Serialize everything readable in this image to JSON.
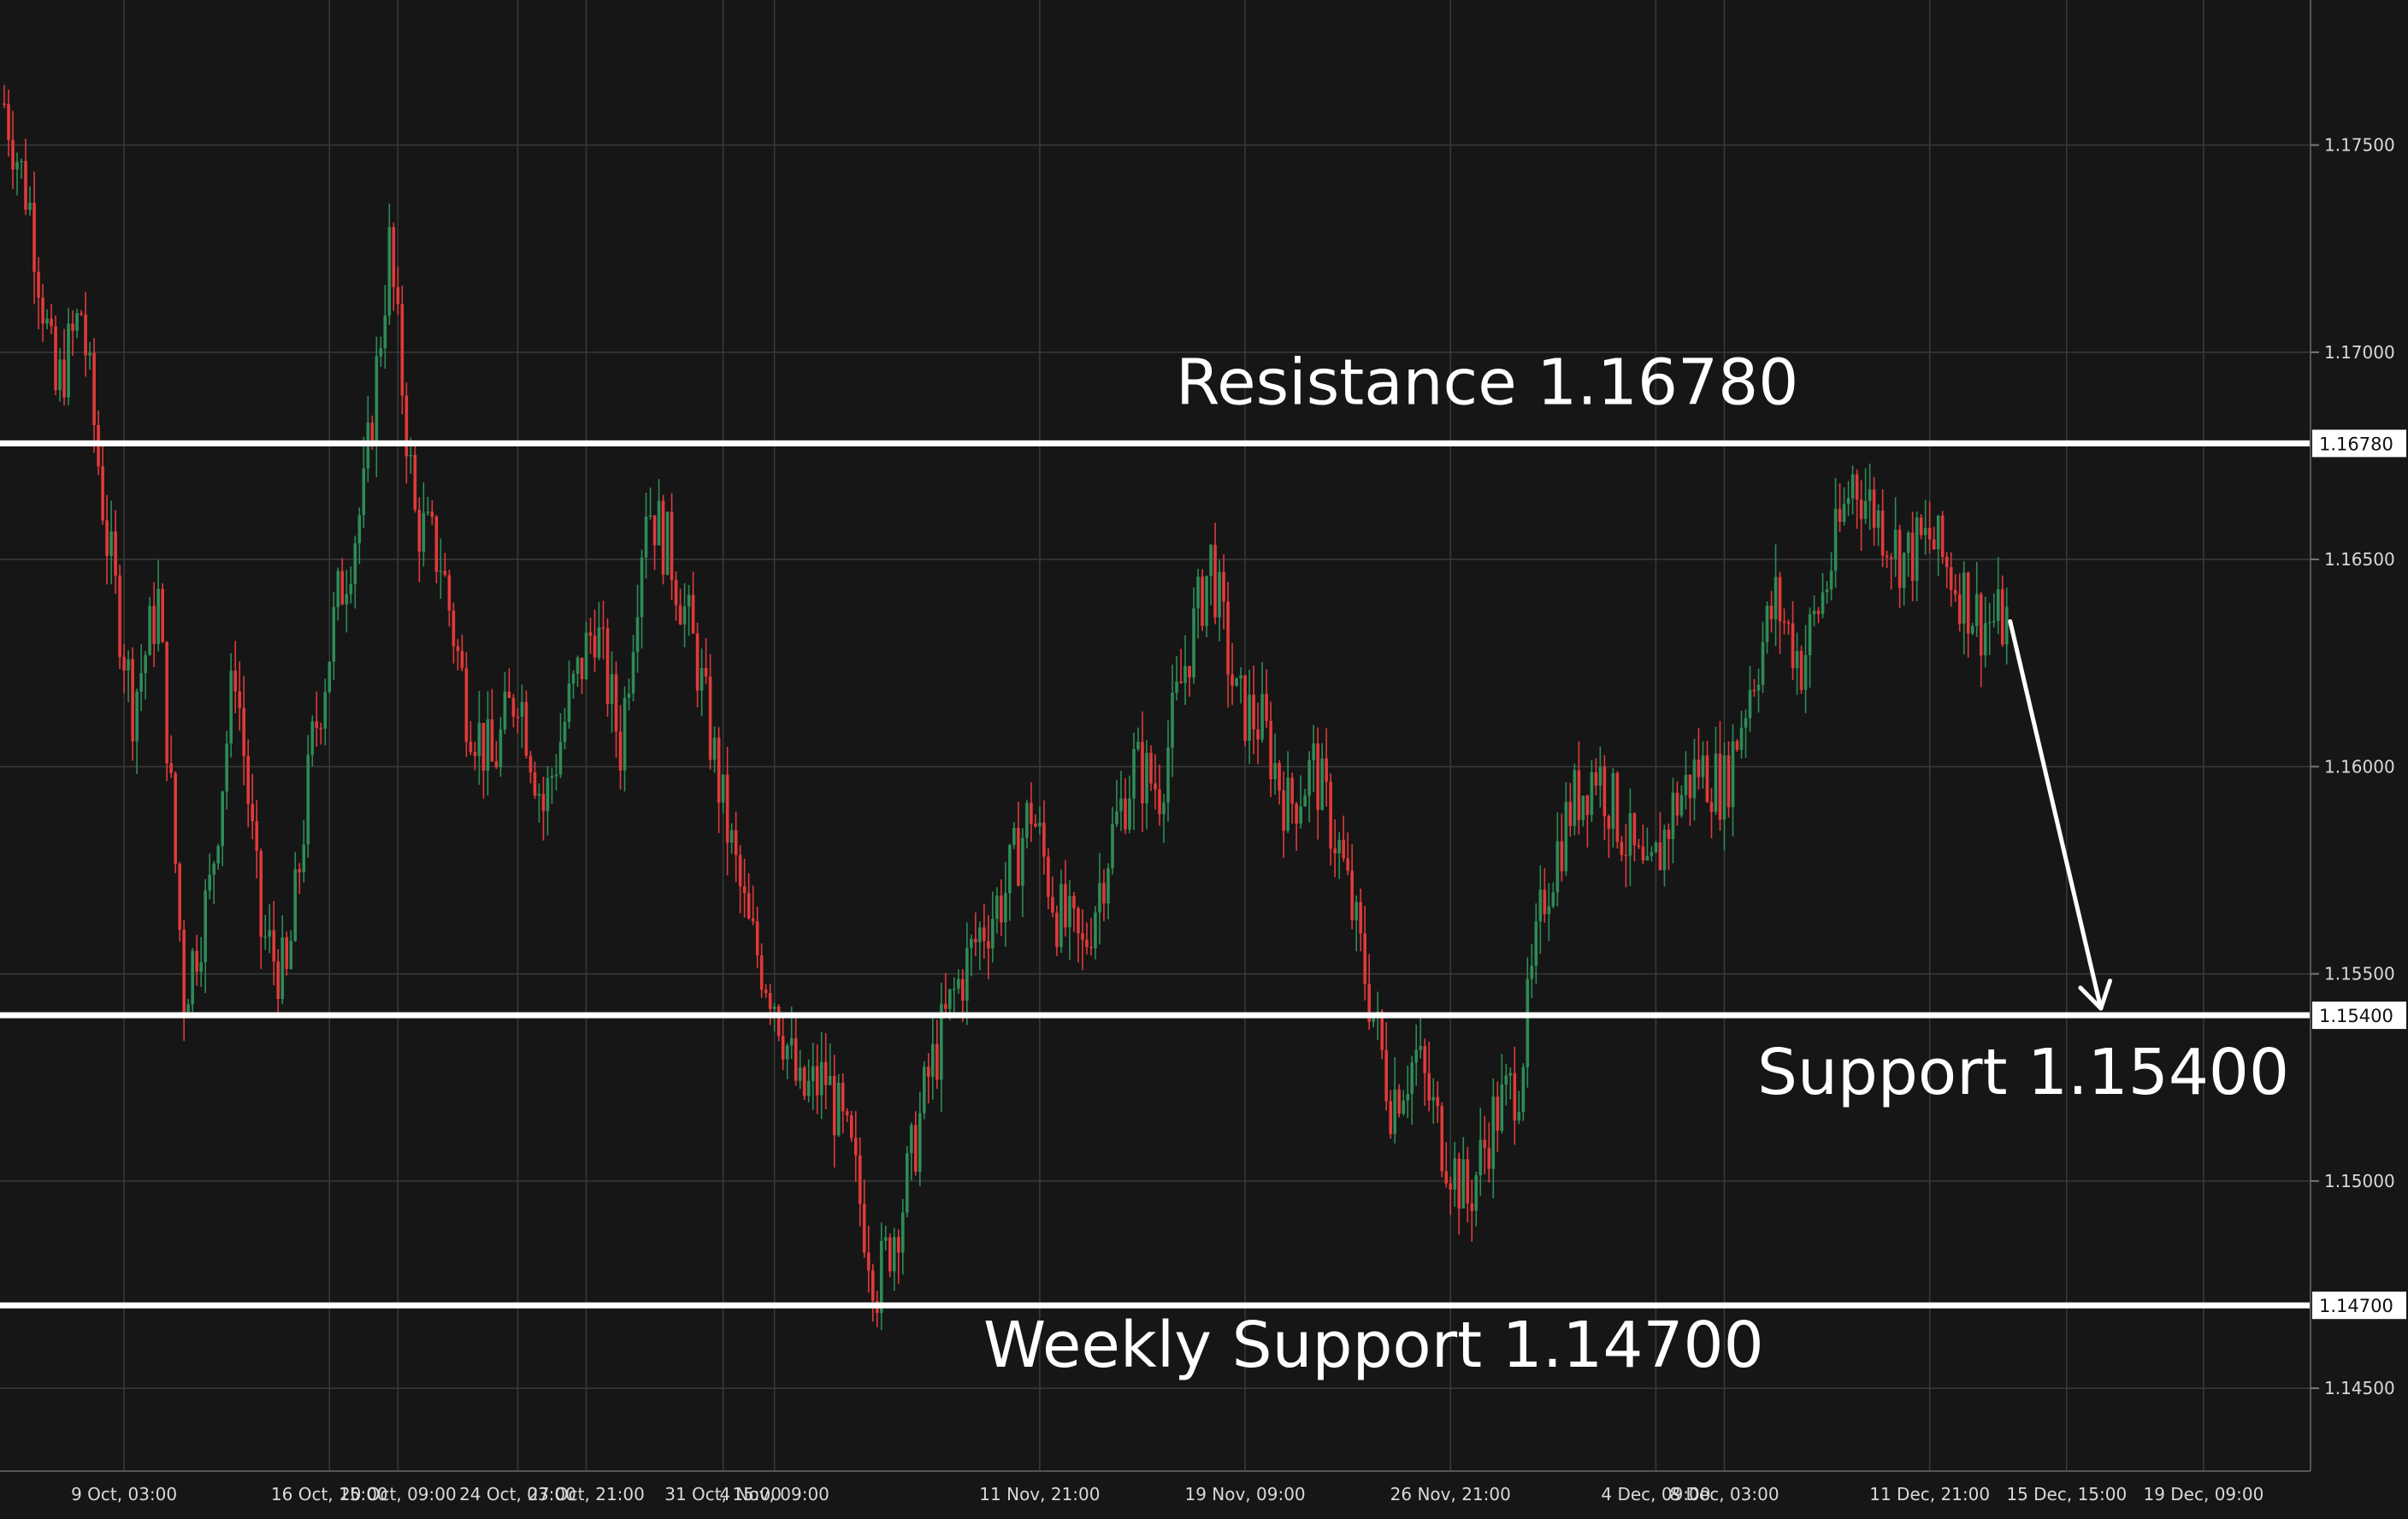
{
  "chart_data": {
    "type": "candlestick",
    "title": "",
    "xlabel": "",
    "ylabel": "",
    "ylim": [
      1.143,
      1.1785
    ],
    "grid": true,
    "colors": {
      "background": "#161616",
      "grid": "#3a3a3a",
      "bull": "#2e8b57",
      "bear": "#e03a3a",
      "level": "#ffffff",
      "text": "#d9d9d9"
    },
    "y_ticks": [
      "1.14500",
      "1.15000",
      "1.15500",
      "1.16000",
      "1.16500",
      "1.17000",
      "1.17500"
    ],
    "x_ticks": [
      "9 Oct, 03:00",
      "16 Oct, 15:00",
      "20 Oct, 09:00",
      "24 Oct, 03:00",
      "27 Oct, 21:00",
      "31 Oct, 15:00",
      "4 Nov, 09:00",
      "11 Nov, 21:00",
      "19 Nov, 09:00",
      "26 Nov, 21:00",
      "4 Dec, 09:00",
      "8 Dec, 03:00",
      "11 Dec, 21:00",
      "15 Dec, 15:00",
      "19 Dec, 09:00"
    ],
    "price_path": [
      [
        0,
        1.176
      ],
      [
        3,
        1.1735
      ],
      [
        6,
        1.169
      ],
      [
        9,
        1.171
      ],
      [
        12,
        1.1655
      ],
      [
        15,
        1.1615
      ],
      [
        18,
        1.164
      ],
      [
        21,
        1.1545
      ],
      [
        24,
        1.157
      ],
      [
        27,
        1.1625
      ],
      [
        30,
        1.156
      ],
      [
        33,
        1.1548
      ],
      [
        36,
        1.1605
      ],
      [
        39,
        1.164
      ],
      [
        42,
        1.1665
      ],
      [
        45,
        1.1725
      ],
      [
        48,
        1.166
      ],
      [
        51,
        1.165
      ],
      [
        54,
        1.1615
      ],
      [
        57,
        1.16
      ],
      [
        60,
        1.162
      ],
      [
        63,
        1.159
      ],
      [
        66,
        1.1615
      ],
      [
        69,
        1.1635
      ],
      [
        72,
        1.1605
      ],
      [
        75,
        1.1665
      ],
      [
        78,
        1.165
      ],
      [
        81,
        1.1625
      ],
      [
        84,
        1.159
      ],
      [
        87,
        1.156
      ],
      [
        90,
        1.1545
      ],
      [
        93,
        1.152
      ],
      [
        96,
        1.1525
      ],
      [
        99,
        1.1505
      ],
      [
        102,
        1.1475
      ],
      [
        105,
        1.1495
      ],
      [
        108,
        1.1525
      ],
      [
        111,
        1.1545
      ],
      [
        114,
        1.156
      ],
      [
        117,
        1.157
      ],
      [
        120,
        1.159
      ],
      [
        123,
        1.1565
      ],
      [
        126,
        1.1555
      ],
      [
        129,
        1.158
      ],
      [
        132,
        1.16
      ],
      [
        135,
        1.1595
      ],
      [
        138,
        1.1625
      ],
      [
        141,
        1.165
      ],
      [
        144,
        1.1615
      ],
      [
        147,
        1.161
      ],
      [
        150,
        1.159
      ],
      [
        153,
        1.16
      ],
      [
        156,
        1.158
      ],
      [
        159,
        1.155
      ],
      [
        162,
        1.152
      ],
      [
        165,
        1.153
      ],
      [
        168,
        1.151
      ],
      [
        171,
        1.1495
      ],
      [
        174,
        1.1515
      ],
      [
        177,
        1.1525
      ],
      [
        180,
        1.157
      ],
      [
        183,
        1.159
      ],
      [
        186,
        1.16
      ],
      [
        189,
        1.1585
      ],
      [
        192,
        1.157
      ],
      [
        195,
        1.159
      ],
      [
        198,
        1.16
      ],
      [
        201,
        1.1595
      ],
      [
        204,
        1.162
      ],
      [
        207,
        1.164
      ],
      [
        210,
        1.1625
      ],
      [
        213,
        1.1645
      ],
      [
        216,
        1.167
      ],
      [
        219,
        1.166
      ],
      [
        222,
        1.165
      ],
      [
        225,
        1.1655
      ],
      [
        228,
        1.1645
      ],
      [
        231,
        1.1635
      ],
      [
        234,
        1.1635
      ]
    ],
    "levels": [
      {
        "name": "Resistance",
        "value": 1.1678,
        "badge": "1.16780",
        "label": "Resistance 1.16780"
      },
      {
        "name": "Support",
        "value": 1.154,
        "badge": "1.15400",
        "label": "Support 1.15400"
      },
      {
        "name": "Weekly Support",
        "value": 1.147,
        "badge": "1.14700",
        "label": "Weekly Support 1.14700"
      }
    ],
    "projection": {
      "from": [
        234,
        1.1633
      ],
      "to": [
        245,
        1.154
      ]
    }
  }
}
